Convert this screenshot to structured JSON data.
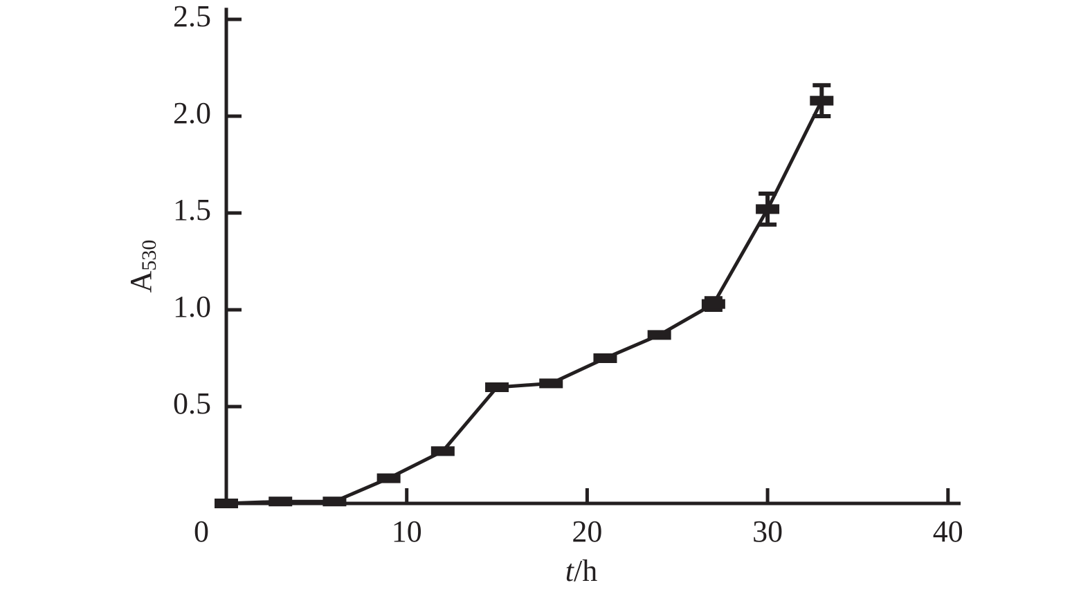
{
  "chart_data": {
    "type": "line",
    "xlabel_var": "t",
    "xlabel_unit": "/h",
    "ylabel": "A",
    "ylabel_sub": "530",
    "x": [
      0,
      3,
      6,
      9,
      12,
      15,
      18,
      21,
      24,
      27,
      30,
      33
    ],
    "series": [
      {
        "color": "#231f20",
        "values": [
          0,
          0.01,
          0.01,
          0.13,
          0.27,
          0.6,
          0.62,
          0.75,
          0.87,
          1.03,
          1.52,
          2.08
        ],
        "errors": [
          0.005,
          0.005,
          0.005,
          0.01,
          0.01,
          0.01,
          0.01,
          0.01,
          0.01,
          0.03,
          0.08,
          0.08
        ]
      }
    ],
    "xlim": [
      0,
      40.7
    ],
    "ylim": [
      0,
      2.56
    ],
    "xticks": [
      0,
      10,
      20,
      30,
      40
    ],
    "yticks": [
      0.5,
      {
        "value": 1,
        "label": "1.0"
      },
      1.5,
      {
        "value": 2,
        "label": "2.0"
      },
      2.5
    ]
  }
}
